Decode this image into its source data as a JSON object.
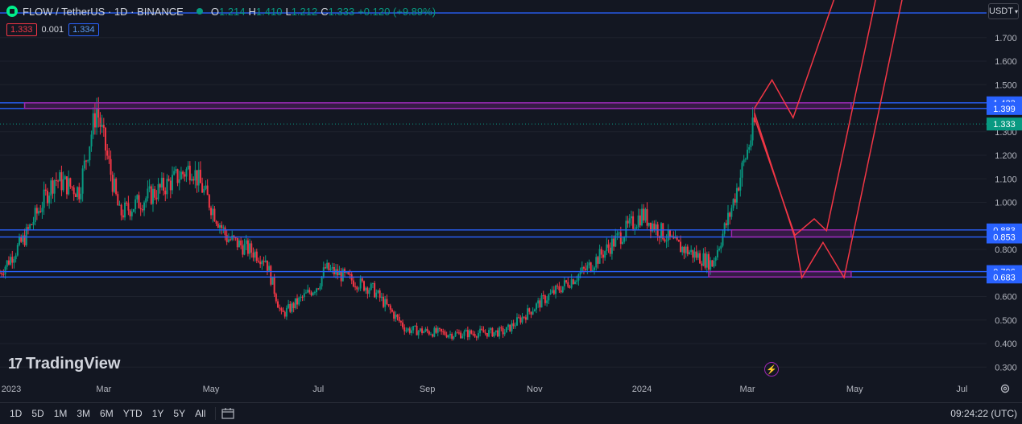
{
  "header": {
    "symbol": "FLOW / TetherUS · 1D · BINANCE",
    "ohlc": {
      "o_label": "O",
      "o_value": "1.214",
      "h_label": "H",
      "h_value": "1.410",
      "l_label": "L",
      "l_value": "1.212",
      "c_label": "C",
      "c_value": "1.333",
      "change": "+0.120 (+9.89%)"
    },
    "bid": "1.333",
    "spread": "0.001",
    "ask": "1.334",
    "currency": "USDT",
    "colors": {
      "up": "#089981",
      "down": "#f23645",
      "flow_logo": "#00ef8b"
    }
  },
  "watermark": {
    "logo_text": "TradingView",
    "icon": "tradingview-logo-icon"
  },
  "price_axis": {
    "ticks": [
      "1.700",
      "1.600",
      "1.500",
      "1.300",
      "1.200",
      "1.100",
      "1.000",
      "0.800",
      "0.600",
      "0.500",
      "0.400",
      "0.300"
    ],
    "labels": [
      {
        "value": "1.423",
        "kind": "line"
      },
      {
        "value": "1.399",
        "kind": "line"
      },
      {
        "value": "1.333",
        "kind": "price"
      },
      {
        "value": "0.883",
        "kind": "line"
      },
      {
        "value": "0.853",
        "kind": "line"
      },
      {
        "value": "0.706",
        "kind": "line"
      },
      {
        "value": "0.683",
        "kind": "line"
      }
    ],
    "colors": {
      "line_label": "#2962ff",
      "price_label": "#089981"
    }
  },
  "time_axis": {
    "labels": [
      "2023",
      "Mar",
      "May",
      "Jul",
      "Sep",
      "Nov",
      "2024",
      "Mar",
      "May",
      "Jul"
    ]
  },
  "bottom_bar": {
    "ranges": [
      "1D",
      "5D",
      "1M",
      "3M",
      "6M",
      "YTD",
      "1Y",
      "5Y",
      "All"
    ],
    "clock": "09:24:22 (UTC)"
  },
  "chart_data": {
    "type": "candlestick",
    "symbol": "FLOW/USDT",
    "interval": "1D",
    "ylim": [
      0.26,
      1.86
    ],
    "x_range": [
      "2023-01-01",
      "2024-07-15"
    ],
    "series": [
      {
        "date": "2023-01-01",
        "close": 0.7
      },
      {
        "date": "2023-01-15",
        "close": 0.85
      },
      {
        "date": "2023-02-01",
        "close": 1.1
      },
      {
        "date": "2023-02-15",
        "close": 1.05
      },
      {
        "date": "2023-02-25",
        "close": 1.4
      },
      {
        "date": "2023-03-10",
        "close": 0.95
      },
      {
        "date": "2023-04-01",
        "close": 1.05
      },
      {
        "date": "2023-04-20",
        "close": 1.15
      },
      {
        "date": "2023-05-10",
        "close": 0.85
      },
      {
        "date": "2023-06-01",
        "close": 0.76
      },
      {
        "date": "2023-06-10",
        "close": 0.52
      },
      {
        "date": "2023-07-01",
        "close": 0.65
      },
      {
        "date": "2023-07-05",
        "close": 0.72
      },
      {
        "date": "2023-08-01",
        "close": 0.63
      },
      {
        "date": "2023-08-20",
        "close": 0.46
      },
      {
        "date": "2023-09-15",
        "close": 0.44
      },
      {
        "date": "2023-10-15",
        "close": 0.45
      },
      {
        "date": "2023-11-05",
        "close": 0.58
      },
      {
        "date": "2023-12-01",
        "close": 0.72
      },
      {
        "date": "2024-01-01",
        "close": 0.95
      },
      {
        "date": "2024-01-20",
        "close": 0.82
      },
      {
        "date": "2024-02-10",
        "close": 0.74
      },
      {
        "date": "2024-02-20",
        "close": 0.95
      },
      {
        "date": "2024-03-05",
        "close": 1.33
      }
    ],
    "horizontal_lines": [
      1.423,
      1.399,
      0.883,
      0.853,
      0.706,
      0.683
    ],
    "zones": [
      {
        "from_date": "2023-01-15",
        "to_date": "2024-04-29",
        "low": 1.399,
        "high": 1.423
      },
      {
        "from_date": "2024-02-21",
        "to_date": "2024-04-29",
        "low": 0.853,
        "high": 0.883
      },
      {
        "from_date": "2024-02-08",
        "to_date": "2024-04-29",
        "low": 0.683,
        "high": 0.706
      }
    ],
    "projection_paths": [
      [
        [
          "2024-03-05",
          1.4
        ],
        [
          "2024-03-15",
          1.52
        ],
        [
          "2024-03-27",
          1.36
        ],
        [
          "2024-04-21",
          1.9
        ]
      ],
      [
        [
          "2024-03-05",
          1.36
        ],
        [
          "2024-03-28",
          0.86
        ],
        [
          "2024-04-08",
          0.93
        ],
        [
          "2024-04-15",
          0.88
        ],
        [
          "2024-05-14",
          1.9
        ]
      ],
      [
        [
          "2024-03-05",
          1.38
        ],
        [
          "2024-03-28",
          0.85
        ],
        [
          "2024-04-01",
          0.68
        ],
        [
          "2024-04-13",
          0.83
        ],
        [
          "2024-04-25",
          0.68
        ],
        [
          "2024-05-29",
          1.9
        ]
      ]
    ],
    "colors": {
      "up": "#089981",
      "down": "#f23645",
      "hline": "#2962ff",
      "zone": "#9c27b0",
      "projection": "#f23645"
    }
  }
}
